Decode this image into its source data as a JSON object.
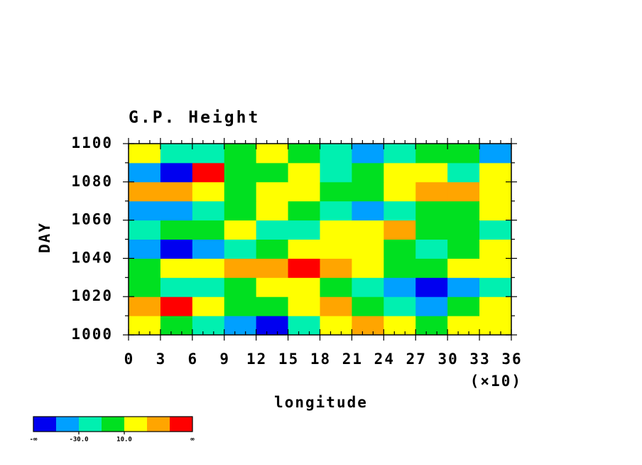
{
  "chart_data": {
    "type": "heatmap",
    "title": "G.P. Height",
    "xlabel": "longitude",
    "ylabel": "DAY",
    "x_multiplier": "(×10)",
    "x": [
      1.5,
      4.5,
      7.5,
      10.5,
      13.5,
      16.5,
      19.5,
      22.5,
      25.5,
      28.5,
      31.5,
      34.5
    ],
    "y": [
      1005,
      1015,
      1025,
      1035,
      1045,
      1055,
      1065,
      1075,
      1085,
      1095
    ],
    "z": [
      [
        15,
        5,
        -20,
        -40,
        -55,
        -30,
        20,
        35,
        10,
        -5,
        15,
        25
      ],
      [
        40,
        55,
        20,
        5,
        -10,
        15,
        30,
        5,
        -20,
        -35,
        -10,
        20
      ],
      [
        5,
        -15,
        -30,
        0,
        25,
        10,
        -5,
        -25,
        -40,
        -55,
        -45,
        -20
      ],
      [
        -10,
        10,
        20,
        35,
        30,
        55,
        45,
        15,
        -5,
        0,
        20,
        10
      ],
      [
        -45,
        -55,
        -40,
        -20,
        0,
        15,
        25,
        10,
        -10,
        -25,
        -5,
        15
      ],
      [
        -20,
        -10,
        5,
        20,
        -30,
        -15,
        10,
        25,
        30,
        5,
        -10,
        -30
      ],
      [
        -50,
        -40,
        -25,
        -5,
        15,
        0,
        -20,
        -45,
        -30,
        -10,
        5,
        20
      ],
      [
        45,
        30,
        10,
        -5,
        15,
        25,
        5,
        -10,
        20,
        35,
        40,
        25
      ],
      [
        -35,
        -55,
        50,
        -10,
        5,
        20,
        -15,
        0,
        25,
        10,
        -20,
        15
      ],
      [
        10,
        -15,
        -30,
        -10,
        15,
        5,
        -25,
        -40,
        -30,
        -10,
        0,
        -35
      ]
    ],
    "xlim": [
      0,
      36
    ],
    "xticks": [
      0,
      3,
      6,
      9,
      12,
      15,
      18,
      21,
      24,
      27,
      30,
      33,
      36
    ],
    "ylim": [
      1000,
      1100
    ],
    "yticks": [
      1000,
      1020,
      1040,
      1060,
      1080,
      1100
    ],
    "colorbar": {
      "levels": [
        -50,
        -30,
        -10,
        10,
        30,
        50
      ],
      "colors": [
        "#0000f0",
        "#00a0ff",
        "#00f0b0",
        "#00e020",
        "#ffff00",
        "#ffa500",
        "#ff0000"
      ],
      "low_label": "-∞",
      "high_label": "∞",
      "ticks": [
        {
          "value": -30,
          "label": "-30.0"
        },
        {
          "value": 10,
          "label": "10.0"
        }
      ]
    }
  }
}
